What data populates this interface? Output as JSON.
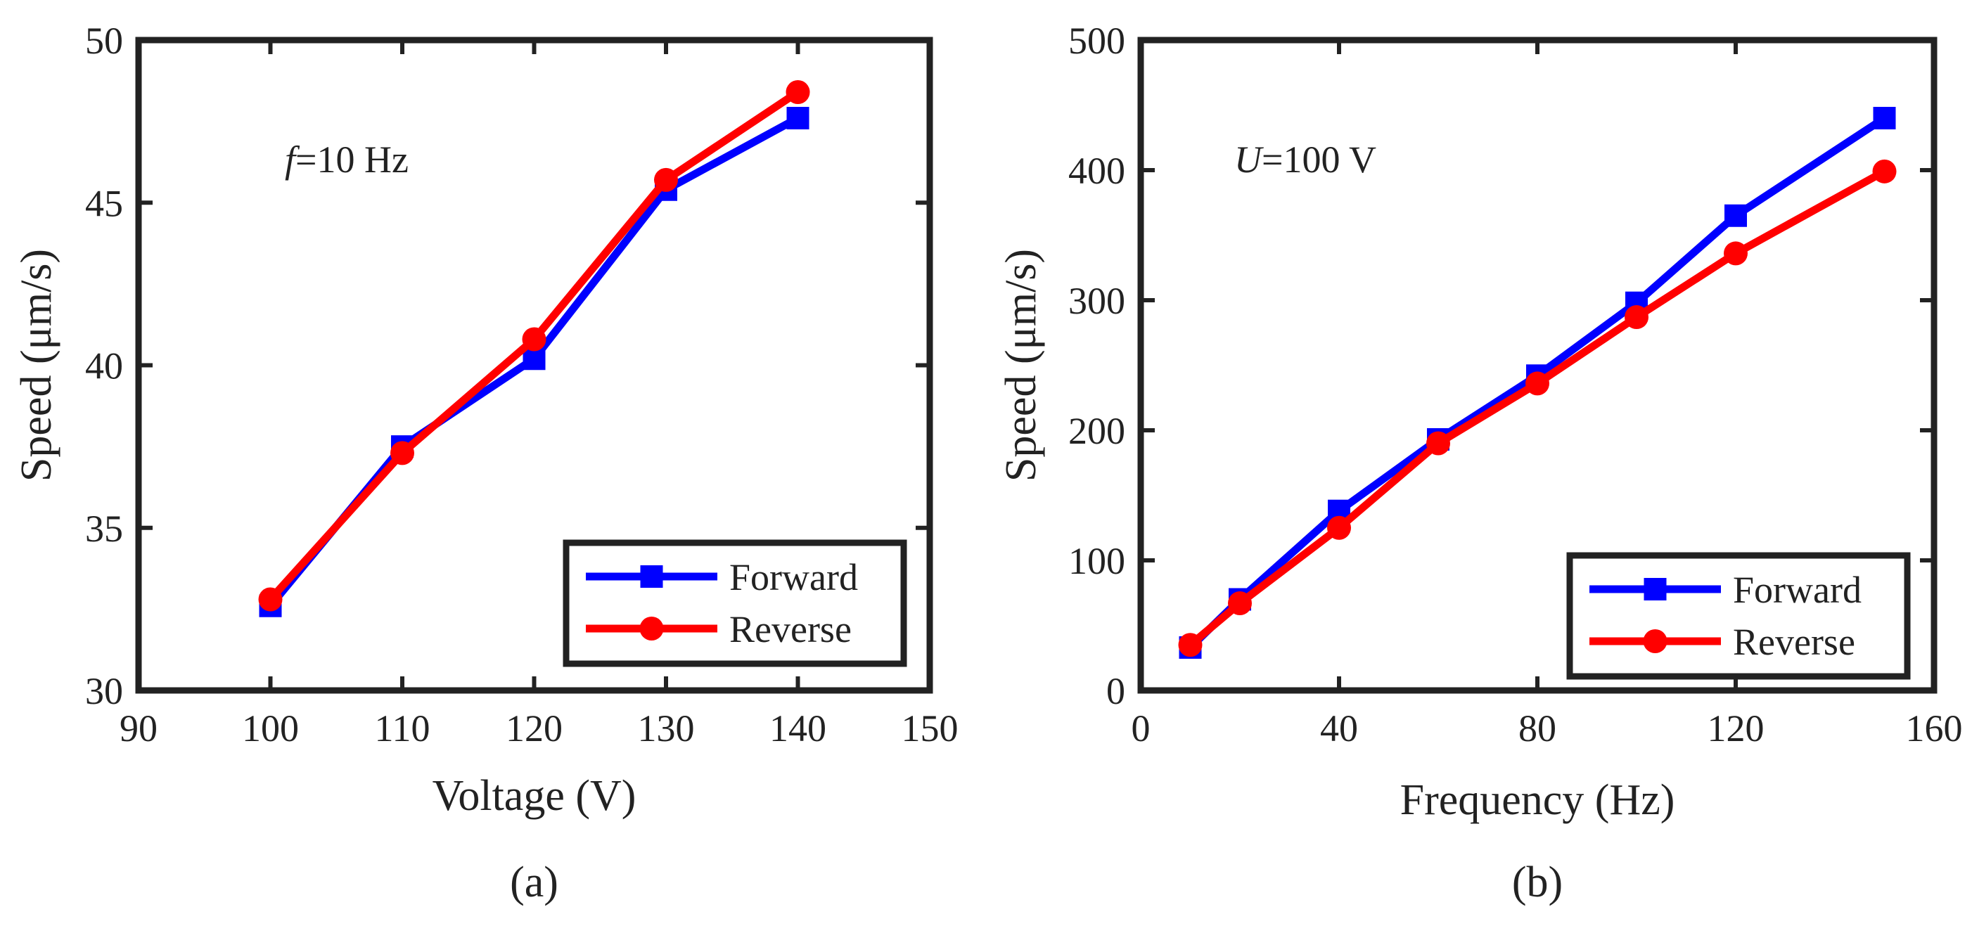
{
  "chart_data": [
    {
      "type": "line",
      "panel_label": "(a)",
      "annotation": {
        "italic": "f",
        "rest": "=10 Hz"
      },
      "xlabel": "Voltage (V)",
      "ylabel": "Speed (μm/s)",
      "xlim": [
        90,
        150
      ],
      "ylim": [
        30,
        50
      ],
      "xticks": [
        90,
        100,
        110,
        120,
        130,
        140,
        150
      ],
      "yticks": [
        30,
        35,
        40,
        45,
        50
      ],
      "legend_position": "bottom-right",
      "x": [
        100,
        110,
        120,
        130,
        140
      ],
      "series": [
        {
          "name": "Forward",
          "color": "#0000ff",
          "marker": "square",
          "values": [
            32.6,
            37.5,
            40.2,
            45.4,
            47.6
          ]
        },
        {
          "name": "Reverse",
          "color": "#ff0000",
          "marker": "circle",
          "values": [
            32.8,
            37.3,
            40.8,
            45.7,
            48.4
          ]
        }
      ]
    },
    {
      "type": "line",
      "panel_label": "(b)",
      "annotation": {
        "italic": "U",
        "rest": "=100 V"
      },
      "xlabel": "Frequency (Hz)",
      "ylabel": "Speed (μm/s)",
      "xlim": [
        0,
        160
      ],
      "ylim": [
        0,
        500
      ],
      "xticks": [
        0,
        40,
        80,
        120,
        160
      ],
      "yticks": [
        0,
        100,
        200,
        300,
        400,
        500
      ],
      "legend_position": "bottom-right",
      "x": [
        10,
        20,
        40,
        60,
        80,
        100,
        120,
        150
      ],
      "series": [
        {
          "name": "Forward",
          "color": "#0000ff",
          "marker": "square",
          "values": [
            33,
            70,
            138,
            193,
            242,
            298,
            365,
            440
          ]
        },
        {
          "name": "Reverse",
          "color": "#ff0000",
          "marker": "circle",
          "values": [
            35,
            67,
            125,
            190,
            236,
            287,
            336,
            399
          ]
        }
      ]
    }
  ]
}
